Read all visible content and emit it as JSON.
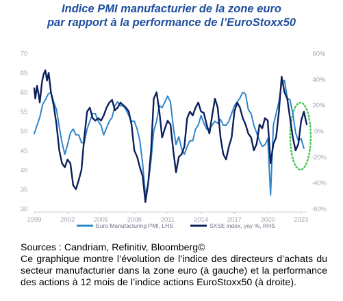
{
  "chart_data": {
    "type": "line",
    "title": "Indice PMI manufacturier de la zone euro",
    "subtitle": "par rapport à la performance de l’EuroStoxx50",
    "x_ticks": [
      "1999",
      "2002",
      "2005",
      "2008",
      "2011",
      "2014",
      "2017",
      "2020",
      "2023"
    ],
    "x_range": [
      1999.0,
      2023.5
    ],
    "y_left": {
      "range": [
        30,
        70
      ],
      "ticks": [
        "30",
        "35",
        "40",
        "45",
        "50",
        "55",
        "60",
        "65",
        "70"
      ]
    },
    "y_right": {
      "range": [
        -60,
        60
      ],
      "ticks": [
        "-60%",
        "-40%",
        "-20%",
        "0%",
        "20%",
        "40%",
        "60%"
      ]
    },
    "legend_position": "bottom",
    "series": [
      {
        "name": "Euro Manufacturing PMI, LHS",
        "axis": "left",
        "color": "#2e86c8",
        "points": [
          [
            1999.0,
            49.3
          ],
          [
            1999.25,
            51.5
          ],
          [
            1999.5,
            53.5
          ],
          [
            1999.75,
            56.8
          ],
          [
            2000.0,
            58.0
          ],
          [
            2000.25,
            59.5
          ],
          [
            2000.5,
            60.0
          ],
          [
            2000.75,
            57.5
          ],
          [
            2001.0,
            55.5
          ],
          [
            2001.25,
            51.0
          ],
          [
            2001.5,
            47.0
          ],
          [
            2001.75,
            44.0
          ],
          [
            2002.0,
            46.5
          ],
          [
            2002.25,
            49.5
          ],
          [
            2002.5,
            50.5
          ],
          [
            2002.75,
            49.0
          ],
          [
            2003.0,
            49.0
          ],
          [
            2003.25,
            47.0
          ],
          [
            2003.5,
            47.0
          ],
          [
            2003.75,
            50.5
          ],
          [
            2004.0,
            52.5
          ],
          [
            2004.25,
            54.5
          ],
          [
            2004.5,
            54.5
          ],
          [
            2004.75,
            52.5
          ],
          [
            2005.0,
            51.5
          ],
          [
            2005.25,
            49.0
          ],
          [
            2005.5,
            50.8
          ],
          [
            2005.75,
            52.5
          ],
          [
            2006.0,
            53.5
          ],
          [
            2006.25,
            56.5
          ],
          [
            2006.5,
            57.5
          ],
          [
            2006.75,
            56.5
          ],
          [
            2007.0,
            56.5
          ],
          [
            2007.25,
            55.5
          ],
          [
            2007.5,
            54.0
          ],
          [
            2007.75,
            52.5
          ],
          [
            2008.0,
            52.5
          ],
          [
            2008.25,
            50.5
          ],
          [
            2008.5,
            47.5
          ],
          [
            2008.75,
            41.5
          ],
          [
            2009.0,
            33.5
          ],
          [
            2009.25,
            36.5
          ],
          [
            2009.5,
            42.5
          ],
          [
            2009.75,
            50.0
          ],
          [
            2010.0,
            52.5
          ],
          [
            2010.25,
            56.5
          ],
          [
            2010.5,
            56.0
          ],
          [
            2010.75,
            57.5
          ],
          [
            2011.0,
            59.0
          ],
          [
            2011.25,
            57.5
          ],
          [
            2011.5,
            51.0
          ],
          [
            2011.75,
            46.5
          ],
          [
            2012.0,
            48.5
          ],
          [
            2012.25,
            45.5
          ],
          [
            2012.5,
            44.0
          ],
          [
            2012.75,
            46.0
          ],
          [
            2013.0,
            47.5
          ],
          [
            2013.25,
            47.5
          ],
          [
            2013.5,
            50.5
          ],
          [
            2013.75,
            51.5
          ],
          [
            2014.0,
            54.0
          ],
          [
            2014.25,
            52.0
          ],
          [
            2014.5,
            50.5
          ],
          [
            2014.75,
            50.5
          ],
          [
            2015.0,
            51.5
          ],
          [
            2015.25,
            52.5
          ],
          [
            2015.5,
            52.0
          ],
          [
            2015.75,
            53.0
          ],
          [
            2016.0,
            51.5
          ],
          [
            2016.25,
            51.5
          ],
          [
            2016.5,
            52.5
          ],
          [
            2016.75,
            54.5
          ],
          [
            2017.0,
            56.5
          ],
          [
            2017.25,
            57.5
          ],
          [
            2017.5,
            58.5
          ],
          [
            2017.75,
            60.0
          ],
          [
            2018.0,
            59.5
          ],
          [
            2018.25,
            55.5
          ],
          [
            2018.5,
            54.5
          ],
          [
            2018.75,
            51.5
          ],
          [
            2019.0,
            49.5
          ],
          [
            2019.25,
            47.5
          ],
          [
            2019.5,
            46.0
          ],
          [
            2019.75,
            46.5
          ],
          [
            2020.0,
            48.0
          ],
          [
            2020.25,
            33.5
          ],
          [
            2020.5,
            51.5
          ],
          [
            2020.75,
            54.5
          ],
          [
            2021.0,
            57.5
          ],
          [
            2021.25,
            62.5
          ],
          [
            2021.5,
            63.0
          ],
          [
            2021.75,
            58.5
          ],
          [
            2022.0,
            58.0
          ],
          [
            2022.25,
            54.5
          ],
          [
            2022.5,
            49.5
          ],
          [
            2022.75,
            47.5
          ],
          [
            2023.0,
            48.0
          ],
          [
            2023.25,
            45.5
          ]
        ]
      },
      {
        "name": "SXSE index,  yoy %, RHS",
        "axis": "right",
        "color": "#0d1f5c",
        "points": [
          [
            1999.0,
            33
          ],
          [
            1999.1,
            25
          ],
          [
            1999.25,
            35
          ],
          [
            1999.4,
            28
          ],
          [
            1999.5,
            22
          ],
          [
            1999.7,
            38
          ],
          [
            1999.85,
            44
          ],
          [
            2000.0,
            47
          ],
          [
            2000.15,
            39
          ],
          [
            2000.3,
            45
          ],
          [
            2000.5,
            30
          ],
          [
            2000.75,
            20
          ],
          [
            2001.0,
            5
          ],
          [
            2001.25,
            -15
          ],
          [
            2001.5,
            -25
          ],
          [
            2001.75,
            -28
          ],
          [
            2002.0,
            -22
          ],
          [
            2002.25,
            -25
          ],
          [
            2002.5,
            -42
          ],
          [
            2002.75,
            -45
          ],
          [
            2003.0,
            -38
          ],
          [
            2003.25,
            -30
          ],
          [
            2003.5,
            -5
          ],
          [
            2003.75,
            15
          ],
          [
            2004.0,
            18
          ],
          [
            2004.25,
            10
          ],
          [
            2004.5,
            8
          ],
          [
            2004.75,
            10
          ],
          [
            2005.0,
            8
          ],
          [
            2005.25,
            12
          ],
          [
            2005.5,
            18
          ],
          [
            2005.75,
            22
          ],
          [
            2006.0,
            24
          ],
          [
            2006.25,
            16
          ],
          [
            2006.5,
            18
          ],
          [
            2006.75,
            22
          ],
          [
            2007.0,
            20
          ],
          [
            2007.25,
            18
          ],
          [
            2007.5,
            15
          ],
          [
            2007.75,
            5
          ],
          [
            2008.0,
            -15
          ],
          [
            2008.25,
            -20
          ],
          [
            2008.5,
            -28
          ],
          [
            2008.75,
            -35
          ],
          [
            2009.0,
            -55
          ],
          [
            2009.25,
            -40
          ],
          [
            2009.5,
            -15
          ],
          [
            2009.75,
            25
          ],
          [
            2010.0,
            30
          ],
          [
            2010.25,
            15
          ],
          [
            2010.5,
            -5
          ],
          [
            2010.75,
            2
          ],
          [
            2011.0,
            8
          ],
          [
            2011.25,
            5
          ],
          [
            2011.5,
            -15
          ],
          [
            2011.75,
            -32
          ],
          [
            2012.0,
            -20
          ],
          [
            2012.25,
            -18
          ],
          [
            2012.5,
            -12
          ],
          [
            2012.75,
            10
          ],
          [
            2013.0,
            15
          ],
          [
            2013.25,
            12
          ],
          [
            2013.5,
            18
          ],
          [
            2013.75,
            22
          ],
          [
            2014.0,
            15
          ],
          [
            2014.25,
            14
          ],
          [
            2014.5,
            5
          ],
          [
            2014.75,
            -2
          ],
          [
            2015.0,
            12
          ],
          [
            2015.25,
            25
          ],
          [
            2015.5,
            18
          ],
          [
            2015.75,
            -5
          ],
          [
            2016.0,
            -18
          ],
          [
            2016.25,
            -22
          ],
          [
            2016.5,
            -12
          ],
          [
            2016.75,
            -5
          ],
          [
            2017.0,
            15
          ],
          [
            2017.25,
            22
          ],
          [
            2017.5,
            18
          ],
          [
            2017.75,
            10
          ],
          [
            2018.0,
            5
          ],
          [
            2018.25,
            -2
          ],
          [
            2018.5,
            -5
          ],
          [
            2018.75,
            -15
          ],
          [
            2019.0,
            -10
          ],
          [
            2019.25,
            5
          ],
          [
            2019.5,
            2
          ],
          [
            2019.75,
            10
          ],
          [
            2020.0,
            8
          ],
          [
            2020.25,
            -25
          ],
          [
            2020.5,
            -10
          ],
          [
            2020.75,
            -5
          ],
          [
            2021.0,
            15
          ],
          [
            2021.25,
            42
          ],
          [
            2021.5,
            30
          ],
          [
            2021.75,
            25
          ],
          [
            2022.0,
            10
          ],
          [
            2022.25,
            -5
          ],
          [
            2022.5,
            -15
          ],
          [
            2022.75,
            -10
          ],
          [
            2023.0,
            8
          ],
          [
            2023.25,
            15
          ],
          [
            2023.5,
            5
          ]
        ]
      }
    ],
    "annotation": {
      "shape": "dotted ellipse",
      "color": "#4bc85a",
      "around": "2023"
    }
  },
  "caption": {
    "sources": "Sources : Candriam, Refinitiv, Bloomberg©",
    "description": "Ce graphique montre l’évolution de l’indice des directeurs d’achats du secteur manufacturier dans la zone euro (à gauche) et la performance des actions à 12 mois de l’indice actions EuroStoxx50 (à droite)."
  },
  "colors": {
    "title": "#1f4e9e",
    "axis_text": "#9aa2ad",
    "pmi": "#2e86c8",
    "sxse": "#0d1f5c",
    "annotation": "#4bc85a"
  }
}
